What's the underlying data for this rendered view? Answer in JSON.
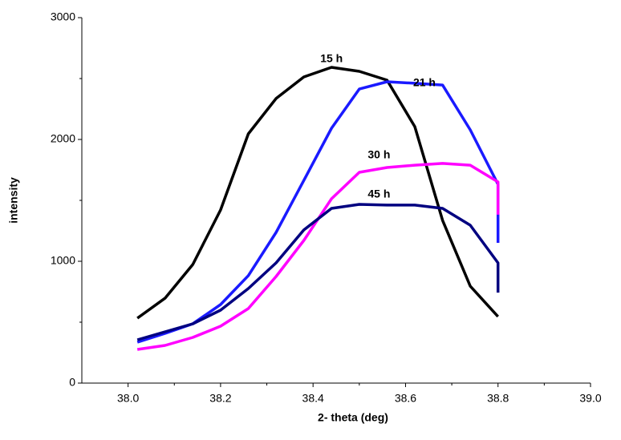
{
  "chart_data": {
    "type": "line",
    "x_label": "2- theta (deg)",
    "y_label": "intensity",
    "xlim": [
      37.9,
      39.0
    ],
    "xticks": [
      {
        "value": 38.0,
        "label": "38.0"
      },
      38.2,
      38.4,
      38.6,
      38.8,
      {
        "value": 39.0,
        "label": "39.0"
      }
    ],
    "ylim": [
      0,
      3000
    ],
    "yticks": [
      0,
      1000,
      2000,
      3000
    ],
    "series": [
      {
        "name": "15 h",
        "color": "#000000",
        "x": [
          38.02,
          38.08,
          38.14,
          38.2,
          38.26,
          38.32,
          38.38,
          38.44,
          38.5,
          38.56,
          38.62,
          38.68,
          38.74,
          38.8
        ],
        "values": [
          533,
          697,
          974,
          1421,
          2046,
          2336,
          2513,
          2592,
          2559,
          2487,
          2105,
          1336,
          796,
          546
        ]
      },
      {
        "name": "21 h",
        "color": "#1a1aff",
        "x": [
          38.02,
          38.08,
          38.14,
          38.2,
          38.26,
          38.32,
          38.38,
          38.44,
          38.5,
          38.56,
          38.62,
          38.68,
          38.74,
          38.8,
          38.8
        ],
        "values": [
          336,
          408,
          487,
          645,
          882,
          1237,
          1664,
          2092,
          2414,
          2474,
          2461,
          2447,
          2079,
          1632,
          1151
        ]
      },
      {
        "name": "30 h",
        "color": "#ff00ff",
        "x": [
          38.02,
          38.08,
          38.14,
          38.2,
          38.26,
          38.32,
          38.38,
          38.44,
          38.5,
          38.56,
          38.62,
          38.68,
          38.74,
          38.8,
          38.8
        ],
        "values": [
          276,
          309,
          375,
          467,
          612,
          875,
          1171,
          1513,
          1730,
          1770,
          1789,
          1803,
          1789,
          1651,
          1382
        ]
      },
      {
        "name": "45 h",
        "color": "#000080",
        "x": [
          38.02,
          38.08,
          38.14,
          38.2,
          38.26,
          38.32,
          38.38,
          38.44,
          38.5,
          38.56,
          38.62,
          38.68,
          38.74,
          38.8,
          38.8
        ],
        "values": [
          355,
          421,
          487,
          599,
          776,
          987,
          1257,
          1434,
          1467,
          1461,
          1461,
          1434,
          1296,
          987,
          743
        ]
      }
    ]
  }
}
